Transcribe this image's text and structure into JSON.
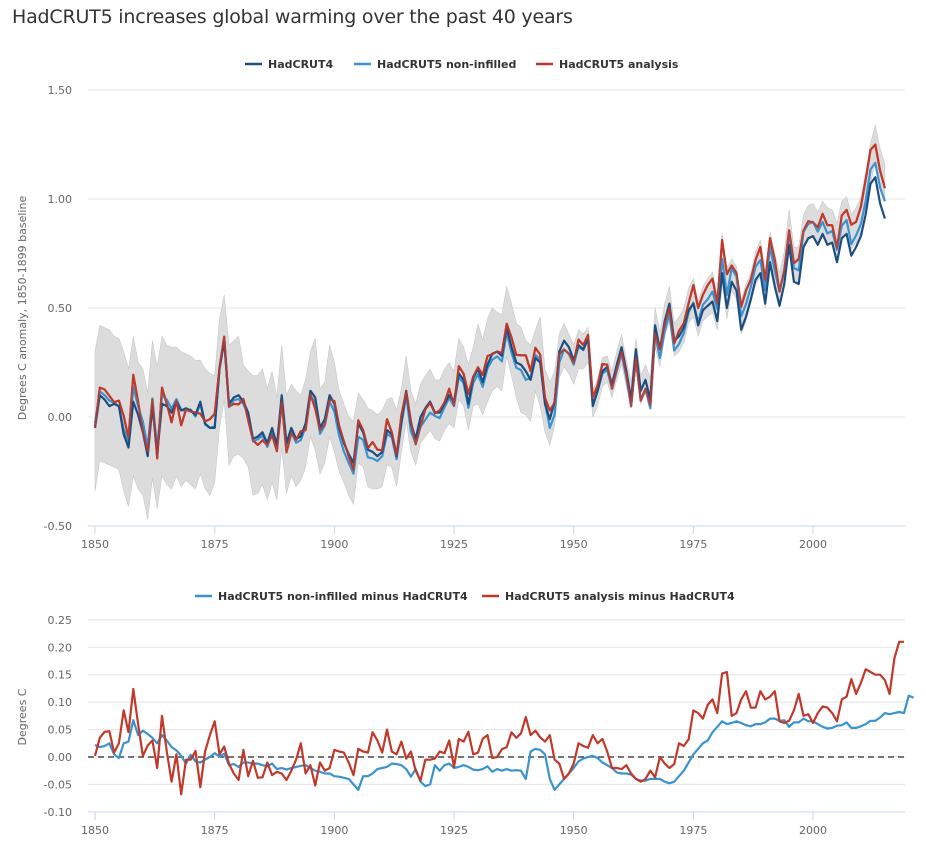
{
  "page": {
    "title": "HadCRUT5 increases global warming over the past 40 years"
  },
  "chart_data": [
    {
      "type": "line",
      "title": "",
      "xlabel": "",
      "ylabel": "Degrees C anomaly, 1850-1899 baseline",
      "ylim": [
        -0.5,
        1.5
      ],
      "xlim": [
        1850,
        2019
      ],
      "yticks": [
        "-0.50",
        "0.00",
        "0.50",
        "1.00",
        "1.50"
      ],
      "xticks": [
        "1850",
        "1875",
        "1900",
        "1925",
        "1950",
        "1975",
        "2000"
      ],
      "grid": true,
      "legend_position": "top-center",
      "legend": [
        "HadCRUT4",
        "HadCRUT5 non-infilled",
        "HadCRUT5 analysis"
      ],
      "colors": {
        "HadCRUT4": "#1c4e80",
        "HadCRUT5 non-infilled": "#3a93cf",
        "HadCRUT5 analysis": "#c0392b",
        "uncertainty": "#d9d9d9"
      },
      "x_start": 1850,
      "hadcrut4": [
        -0.05,
        0.1,
        0.08,
        0.05,
        0.06,
        0.05,
        -0.08,
        -0.14,
        0.07,
        0.01,
        -0.07,
        -0.18,
        0.05,
        -0.17,
        0.06,
        0.05,
        0.02,
        0.07,
        0.03,
        0.04,
        0.03,
        0.01,
        0.07,
        -0.03,
        -0.05,
        -0.05,
        0.22,
        0.35,
        0.06,
        0.09,
        0.1,
        0.07,
        0.02,
        -0.1,
        -0.09,
        -0.07,
        -0.12,
        -0.05,
        -0.13,
        0.1,
        -0.12,
        -0.05,
        -0.1,
        -0.09,
        -0.03,
        0.12,
        0.09,
        -0.05,
        -0.01,
        0.1,
        0.06,
        -0.05,
        -0.12,
        -0.17,
        -0.21,
        -0.03,
        -0.07,
        -0.15,
        -0.16,
        -0.18,
        -0.16,
        -0.06,
        -0.08,
        -0.18,
        -0.02,
        0.12,
        -0.03,
        -0.1,
        0.0,
        0.04,
        0.07,
        0.02,
        0.02,
        0.06,
        0.1,
        0.07,
        0.2,
        0.17,
        0.06,
        0.18,
        0.22,
        0.16,
        0.24,
        0.29,
        0.3,
        0.28,
        0.41,
        0.32,
        0.25,
        0.24,
        0.21,
        0.17,
        0.27,
        0.25,
        0.06,
        -0.01,
        0.07,
        0.3,
        0.35,
        0.32,
        0.26,
        0.33,
        0.31,
        0.36,
        0.05,
        0.12,
        0.21,
        0.23,
        0.15,
        0.24,
        0.32,
        0.21,
        0.08,
        0.31,
        0.12,
        0.17,
        0.08,
        0.42,
        0.31,
        0.44,
        0.52,
        0.35,
        0.37,
        0.41,
        0.49,
        0.52,
        0.42,
        0.49,
        0.51,
        0.53,
        0.44,
        0.66,
        0.5,
        0.62,
        0.58,
        0.4,
        0.46,
        0.54,
        0.63,
        0.66,
        0.52,
        0.71,
        0.6,
        0.51,
        0.61,
        0.79,
        0.62,
        0.61,
        0.78,
        0.82,
        0.83,
        0.79,
        0.84,
        0.79,
        0.8,
        0.71,
        0.82,
        0.84,
        0.74,
        0.78,
        0.83,
        0.93,
        1.07,
        1.1,
        0.98,
        0.91
      ],
      "band_upper": [
        0.3,
        0.42,
        0.41,
        0.4,
        0.37,
        0.36,
        0.3,
        0.22,
        0.37,
        0.25,
        0.22,
        0.11,
        0.35,
        0.23,
        0.37,
        0.33,
        0.32,
        0.32,
        0.3,
        0.29,
        0.28,
        0.26,
        0.26,
        0.22,
        0.2,
        0.19,
        0.45,
        0.56,
        0.33,
        0.35,
        0.37,
        0.24,
        0.21,
        0.19,
        0.19,
        0.22,
        0.13,
        0.21,
        0.09,
        0.33,
        0.1,
        0.15,
        0.12,
        0.1,
        0.17,
        0.3,
        0.36,
        0.13,
        0.16,
        0.33,
        0.25,
        0.12,
        0.06,
        0.0,
        -0.02,
        0.11,
        0.08,
        0.04,
        0.03,
        0.01,
        0.03,
        0.08,
        0.09,
        0.03,
        0.13,
        0.28,
        0.12,
        0.06,
        0.15,
        0.19,
        0.22,
        0.17,
        0.17,
        0.22,
        0.25,
        0.21,
        0.36,
        0.32,
        0.24,
        0.32,
        0.43,
        0.35,
        0.45,
        0.5,
        0.48,
        0.47,
        0.6,
        0.52,
        0.43,
        0.41,
        0.35,
        0.33,
        0.4,
        0.46,
        0.22,
        0.16,
        0.21,
        0.38,
        0.43,
        0.38,
        0.33,
        0.4,
        0.38,
        0.41,
        0.1,
        0.17,
        0.27,
        0.28,
        0.21,
        0.3,
        0.38,
        0.26,
        0.16,
        0.36,
        0.19,
        0.24,
        0.18,
        0.5,
        0.39,
        0.52,
        0.6,
        0.43,
        0.46,
        0.5,
        0.59,
        0.63,
        0.52,
        0.6,
        0.63,
        0.64,
        0.55,
        0.77,
        0.61,
        0.72,
        0.68,
        0.52,
        0.58,
        0.66,
        0.76,
        0.79,
        0.66,
        0.84,
        0.73,
        0.66,
        0.76,
        0.95,
        0.78,
        0.78,
        0.93,
        0.97,
        0.98,
        0.94,
        0.99,
        0.96,
        0.95,
        0.89,
        0.99,
        1.01,
        0.93,
        0.96,
        1.01,
        1.1,
        1.24,
        1.34,
        1.23,
        1.16
      ],
      "band_lower": [
        -0.34,
        -0.2,
        -0.21,
        -0.22,
        -0.23,
        -0.24,
        -0.34,
        -0.41,
        -0.27,
        -0.33,
        -0.36,
        -0.47,
        -0.28,
        -0.42,
        -0.27,
        -0.31,
        -0.33,
        -0.27,
        -0.32,
        -0.29,
        -0.31,
        -0.33,
        -0.26,
        -0.33,
        -0.36,
        -0.3,
        -0.05,
        0.08,
        -0.22,
        -0.18,
        -0.17,
        -0.19,
        -0.23,
        -0.36,
        -0.35,
        -0.31,
        -0.38,
        -0.3,
        -0.38,
        -0.14,
        -0.35,
        -0.27,
        -0.32,
        -0.29,
        -0.23,
        -0.09,
        -0.15,
        -0.26,
        -0.21,
        -0.09,
        -0.16,
        -0.25,
        -0.3,
        -0.36,
        -0.4,
        -0.21,
        -0.23,
        -0.32,
        -0.33,
        -0.33,
        -0.32,
        -0.22,
        -0.23,
        -0.32,
        -0.16,
        -0.02,
        -0.16,
        -0.22,
        -0.12,
        -0.09,
        -0.06,
        -0.1,
        -0.11,
        -0.06,
        -0.03,
        -0.05,
        0.08,
        0.05,
        -0.06,
        0.05,
        0.06,
        0.01,
        0.07,
        0.12,
        0.14,
        0.12,
        0.28,
        0.19,
        0.09,
        0.02,
        0.01,
        -0.02,
        0.12,
        0.05,
        -0.07,
        -0.13,
        -0.04,
        0.18,
        0.23,
        0.2,
        0.15,
        0.22,
        0.22,
        0.25,
        0.0,
        0.05,
        0.14,
        0.16,
        0.09,
        0.17,
        0.24,
        0.14,
        0.06,
        0.22,
        0.06,
        0.11,
        0.06,
        0.32,
        0.23,
        0.37,
        0.44,
        0.28,
        0.3,
        0.34,
        0.43,
        0.46,
        0.37,
        0.44,
        0.46,
        0.48,
        0.4,
        0.61,
        0.45,
        0.58,
        0.54,
        0.38,
        0.44,
        0.52,
        0.61,
        0.64,
        0.5,
        0.68,
        0.58,
        0.5,
        0.6,
        0.79,
        0.62,
        0.62,
        0.77,
        0.81,
        0.83,
        0.79,
        0.84,
        0.79,
        0.8,
        0.73,
        0.83,
        0.85,
        0.77,
        0.8,
        0.85,
        0.93,
        1.07,
        1.17,
        1.07,
        1.0
      ]
    },
    {
      "type": "line",
      "title": "",
      "xlabel": "",
      "ylabel": "Degrees C",
      "ylim": [
        -0.1,
        0.25
      ],
      "xlim": [
        1850,
        2019
      ],
      "yticks": [
        "-0.10",
        "-0.05",
        "0.00",
        "0.05",
        "0.10",
        "0.15",
        "0.20",
        "0.25"
      ],
      "xticks": [
        "1850",
        "1875",
        "1900",
        "1925",
        "1950",
        "1975",
        "2000"
      ],
      "grid": true,
      "zero_line": "dashed",
      "legend_position": "top-center",
      "legend": [
        "HadCRUT5 non-infilled minus HadCRUT4",
        "HadCRUT5 analysis minus HadCRUT4"
      ],
      "colors": {
        "non_infilled_minus": "#3a93cf",
        "analysis_minus": "#c0392b",
        "zero_line": "#222222"
      },
      "x_start": 1850,
      "non_infilled_minus_hadcrut4": [
        0.022,
        0.018,
        0.02,
        0.025,
        0.005,
        -0.002,
        0.025,
        0.028,
        0.067,
        0.04,
        0.048,
        0.042,
        0.035,
        0.025,
        0.04,
        0.03,
        0.018,
        0.012,
        0.002,
        -0.012,
        0.004,
        -0.008,
        -0.01,
        -0.005,
        0.0,
        0.007,
        0.001,
        0.006,
        -0.015,
        -0.013,
        -0.018,
        -0.01,
        -0.01,
        -0.012,
        -0.012,
        -0.015,
        -0.017,
        -0.012,
        -0.022,
        -0.02,
        -0.023,
        -0.02,
        -0.018,
        -0.016,
        -0.015,
        -0.02,
        -0.025,
        -0.027,
        -0.03,
        -0.03,
        -0.035,
        -0.036,
        -0.038,
        -0.04,
        -0.05,
        -0.06,
        -0.035,
        -0.035,
        -0.03,
        -0.022,
        -0.02,
        -0.018,
        -0.012,
        -0.013,
        -0.015,
        -0.022,
        -0.036,
        -0.022,
        -0.045,
        -0.053,
        -0.05,
        -0.015,
        -0.025,
        -0.015,
        -0.012,
        -0.02,
        -0.018,
        -0.015,
        -0.018,
        -0.023,
        -0.024,
        -0.022,
        -0.017,
        -0.027,
        -0.022,
        -0.025,
        -0.022,
        -0.025,
        -0.024,
        -0.025,
        -0.04,
        0.01,
        0.015,
        0.013,
        0.005,
        -0.04,
        -0.06,
        -0.05,
        -0.04,
        -0.03,
        -0.02,
        -0.008,
        -0.003,
        0.0,
        0.002,
        -0.002,
        -0.01,
        -0.015,
        -0.02,
        -0.028,
        -0.03,
        -0.03,
        -0.032,
        -0.04,
        -0.043,
        -0.043,
        -0.04,
        -0.04,
        -0.04,
        -0.045,
        -0.048,
        -0.045,
        -0.035,
        -0.025,
        -0.01,
        0.005,
        0.015,
        0.025,
        0.03,
        0.045,
        0.055,
        0.065,
        0.06,
        0.062,
        0.065,
        0.062,
        0.058,
        0.056,
        0.06,
        0.06,
        0.063,
        0.07,
        0.07,
        0.066,
        0.067,
        0.055,
        0.063,
        0.063,
        0.07,
        0.065,
        0.065,
        0.06,
        0.055,
        0.052,
        0.053,
        0.057,
        0.058,
        0.063,
        0.053,
        0.053,
        0.056,
        0.06,
        0.066,
        0.066,
        0.072,
        0.08,
        0.078,
        0.08,
        0.082,
        0.08,
        0.112,
        0.108
      ],
      "analysis_minus_hadcrut4": [
        0.002,
        0.035,
        0.046,
        0.047,
        0.008,
        0.025,
        0.085,
        0.045,
        0.124,
        0.06,
        0.002,
        0.021,
        0.03,
        -0.02,
        0.075,
        0.01,
        -0.045,
        0.005,
        -0.068,
        -0.005,
        -0.005,
        0.011,
        -0.055,
        0.01,
        0.04,
        0.065,
        0.005,
        0.019,
        -0.012,
        -0.03,
        -0.042,
        0.013,
        -0.035,
        -0.007,
        -0.038,
        -0.037,
        -0.01,
        -0.033,
        -0.027,
        -0.03,
        -0.042,
        -0.025,
        -0.005,
        0.025,
        -0.03,
        -0.015,
        -0.052,
        -0.01,
        -0.025,
        -0.02,
        0.013,
        0.01,
        0.008,
        -0.01,
        -0.033,
        0.015,
        0.01,
        0.008,
        0.045,
        0.03,
        0.008,
        0.05,
        0.01,
        0.005,
        0.028,
        -0.003,
        0.01,
        -0.025,
        -0.043,
        -0.005,
        -0.005,
        -0.003,
        0.01,
        0.007,
        0.03,
        -0.018,
        0.033,
        0.028,
        0.046,
        0.005,
        0.008,
        0.033,
        0.04,
        -0.002,
        0.0,
        0.014,
        0.018,
        0.045,
        0.035,
        0.043,
        0.073,
        0.04,
        0.048,
        0.036,
        0.028,
        0.04,
        -0.005,
        -0.012,
        -0.04,
        -0.03,
        -0.012,
        0.025,
        0.02,
        0.017,
        0.04,
        0.025,
        0.033,
        0.01,
        -0.02,
        -0.02,
        -0.022,
        -0.015,
        -0.03,
        -0.04,
        -0.045,
        -0.04,
        -0.025,
        -0.037,
        0.0,
        -0.012,
        -0.02,
        -0.013,
        0.025,
        0.02,
        0.032,
        0.085,
        0.08,
        0.07,
        0.095,
        0.105,
        0.08,
        0.152,
        0.155,
        0.075,
        0.08,
        0.105,
        0.12,
        0.09,
        0.09,
        0.12,
        0.105,
        0.11,
        0.12,
        0.065,
        0.062,
        0.066,
        0.085,
        0.115,
        0.075,
        0.078,
        0.062,
        0.08,
        0.092,
        0.09,
        0.08,
        0.065,
        0.105,
        0.11,
        0.142,
        0.115,
        0.135,
        0.16,
        0.155,
        0.15,
        0.15,
        0.14,
        0.115,
        0.18,
        0.21,
        0.21
      ]
    }
  ]
}
